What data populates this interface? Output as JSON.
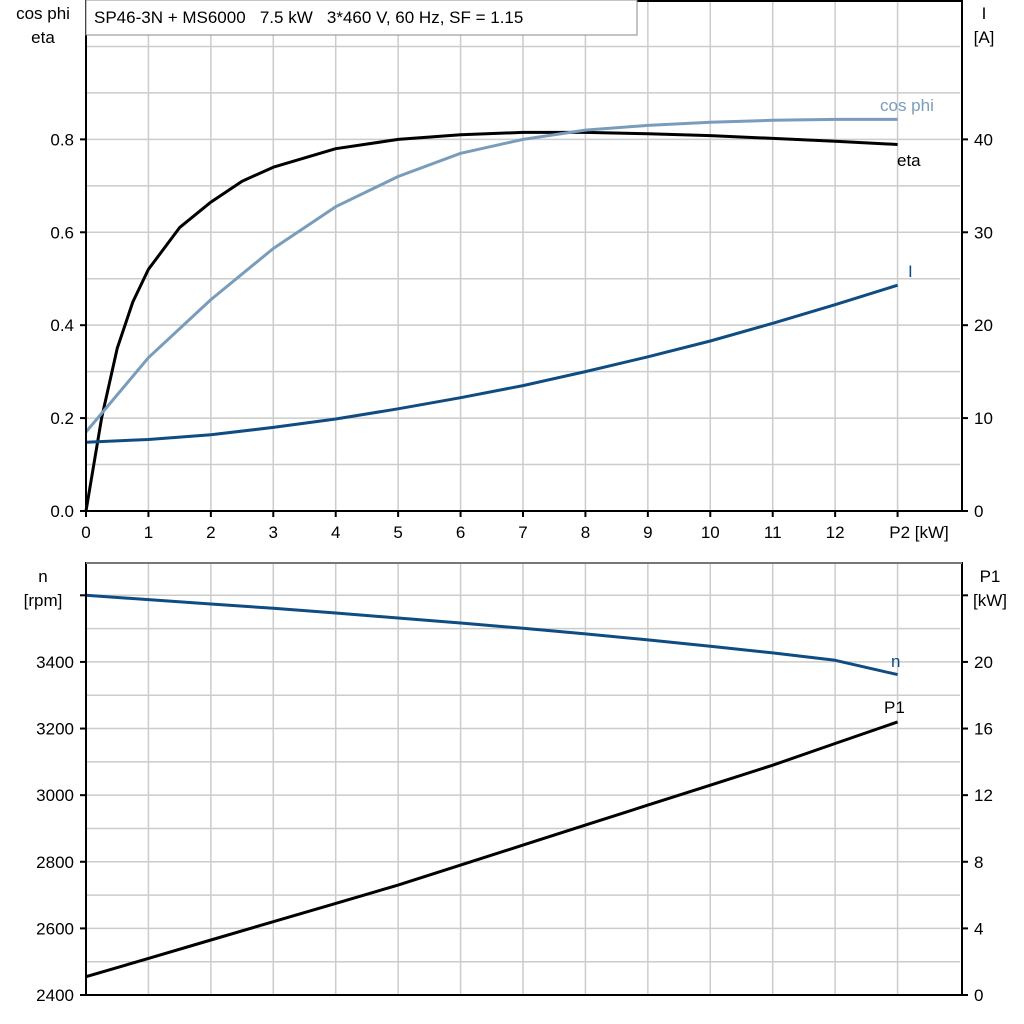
{
  "colors": {
    "eta": "#000000",
    "cos_phi": "#7a9cbb",
    "current": "#0f4c81",
    "speed": "#0f4c81",
    "p1": "#000000",
    "grid": "#cccccc"
  },
  "chart_data": [
    {
      "type": "line",
      "title": "SP46-3N + MS6000   7.5 kW   3*460 V, 60 Hz, SF = 1.15",
      "xlabel": "P2 [kW]",
      "ylabel_left": [
        "cos phi",
        "eta"
      ],
      "ylabel_right": [
        "I",
        "[A]"
      ],
      "xlim": [
        0,
        14
      ],
      "ylim_left": [
        0,
        1.1
      ],
      "ylim_right": [
        0,
        55
      ],
      "grid": true,
      "x_ticks": [
        "0",
        "1",
        "2",
        "3",
        "4",
        "5",
        "6",
        "7",
        "8",
        "9",
        "10",
        "11",
        "12"
      ],
      "y_ticks_left": [
        "0.0",
        "0.2",
        "0.4",
        "0.6",
        "0.8"
      ],
      "y_ticks_right": [
        "0",
        "10",
        "20",
        "30",
        "40"
      ],
      "series": [
        {
          "name": "eta",
          "axis": "left",
          "color_key": "eta",
          "x": [
            0,
            0.25,
            0.5,
            0.75,
            1,
            1.5,
            2,
            2.5,
            3,
            4,
            5,
            6,
            7,
            8,
            9,
            10,
            11,
            12,
            13
          ],
          "y": [
            0,
            0.2,
            0.35,
            0.45,
            0.52,
            0.61,
            0.665,
            0.71,
            0.74,
            0.78,
            0.8,
            0.81,
            0.815,
            0.815,
            0.812,
            0.808,
            0.802,
            0.796,
            0.789
          ]
        },
        {
          "name": "cos phi",
          "axis": "left",
          "color_key": "cos_phi",
          "x": [
            0,
            1,
            2,
            3,
            4,
            5,
            6,
            7,
            8,
            9,
            10,
            11,
            12,
            13
          ],
          "y": [
            0.17,
            0.33,
            0.455,
            0.565,
            0.655,
            0.72,
            0.77,
            0.8,
            0.82,
            0.83,
            0.837,
            0.841,
            0.843,
            0.843
          ]
        },
        {
          "name": "I",
          "axis": "right",
          "color_key": "current",
          "x": [
            0,
            1,
            2,
            3,
            4,
            5,
            6,
            7,
            8,
            9,
            10,
            11,
            12,
            13
          ],
          "y": [
            7.4,
            7.7,
            8.2,
            9.0,
            9.9,
            11.0,
            12.2,
            13.5,
            15.0,
            16.6,
            18.3,
            20.2,
            22.2,
            24.3
          ]
        }
      ]
    },
    {
      "type": "line",
      "ylabel_left": [
        "n",
        "[rpm]"
      ],
      "ylabel_right": [
        "P1",
        "[kW]"
      ],
      "xlim": [
        0,
        14
      ],
      "ylim_left": [
        2400,
        3700
      ],
      "ylim_right": [
        0,
        26
      ],
      "grid": true,
      "y_ticks_left": [
        "2400",
        "2600",
        "2800",
        "3000",
        "3200",
        "3400"
      ],
      "y_ticks_right": [
        "0",
        "4",
        "8",
        "12",
        "16",
        "20"
      ],
      "series": [
        {
          "name": "n",
          "axis": "left",
          "color_key": "speed",
          "x": [
            0,
            1,
            2,
            3,
            4,
            5,
            6,
            7,
            8,
            9,
            10,
            11,
            12,
            13
          ],
          "y": [
            3600,
            3587,
            3574,
            3561,
            3547,
            3532,
            3517,
            3501,
            3484,
            3466,
            3447,
            3427,
            3405,
            3362
          ]
        },
        {
          "name": "P1",
          "axis": "right",
          "color_key": "p1",
          "x": [
            0,
            1,
            2,
            3,
            4,
            5,
            6,
            7,
            8,
            9,
            10,
            11,
            12,
            13
          ],
          "y": [
            1.1,
            2.2,
            3.3,
            4.4,
            5.5,
            6.6,
            7.8,
            9.0,
            10.2,
            11.4,
            12.6,
            13.8,
            15.1,
            16.4
          ]
        }
      ]
    }
  ]
}
